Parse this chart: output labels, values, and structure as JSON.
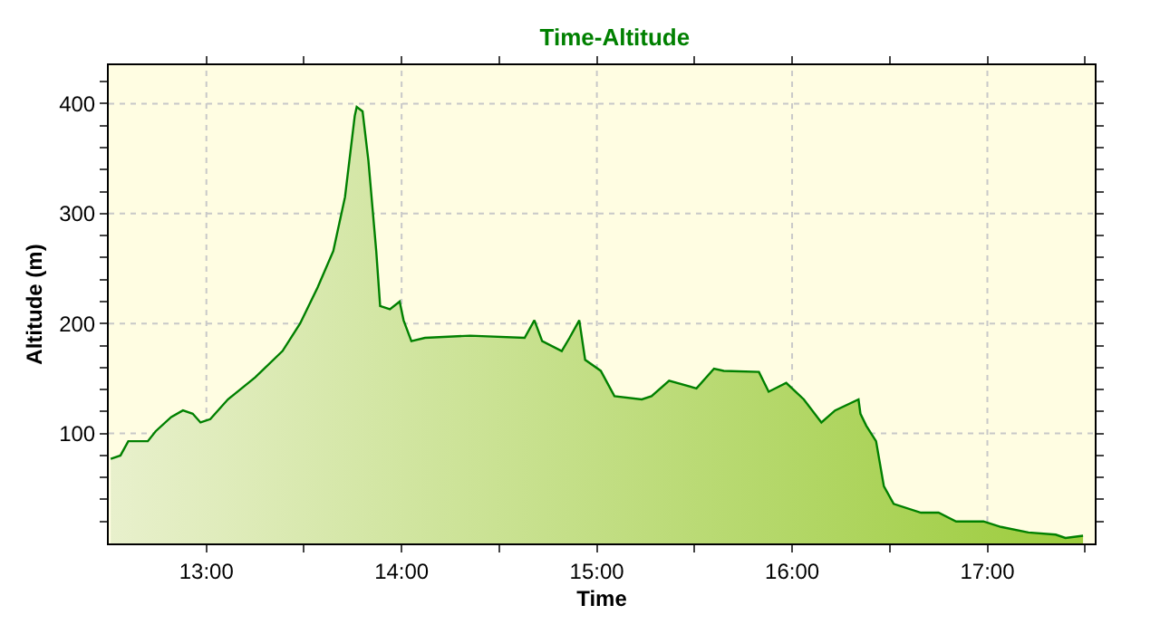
{
  "chart_data": {
    "type": "area",
    "title": "Time-Altitude",
    "xlabel": "Time",
    "ylabel": "Altitude (m)",
    "x": [
      12.51,
      12.56,
      12.6,
      12.7,
      12.74,
      12.82,
      12.88,
      12.93,
      12.97,
      13.02,
      13.11,
      13.25,
      13.39,
      13.48,
      13.57,
      13.65,
      13.71,
      13.76,
      13.77,
      13.8,
      13.83,
      13.87,
      13.89,
      13.94,
      13.99,
      14.01,
      14.05,
      14.12,
      14.35,
      14.63,
      14.68,
      14.72,
      14.82,
      14.86,
      14.91,
      14.94,
      15.02,
      15.09,
      15.23,
      15.28,
      15.37,
      15.51,
      15.6,
      15.65,
      15.83,
      15.88,
      15.97,
      16.06,
      16.15,
      16.22,
      16.34,
      16.35,
      16.38,
      16.43,
      16.47,
      16.52,
      16.66,
      16.75,
      16.84,
      16.98,
      17.07,
      17.21,
      17.35,
      17.4,
      17.49
    ],
    "series": [
      {
        "color": "#008000",
        "values": [
          77,
          80,
          93,
          93,
          102,
          115,
          121,
          118,
          110,
          113,
          131,
          151,
          175,
          200,
          233,
          266,
          315,
          389,
          397,
          393,
          348,
          266,
          216,
          213,
          220,
          203,
          184,
          187,
          189,
          187,
          203,
          184,
          175,
          187,
          203,
          167,
          157,
          134,
          131,
          134,
          148,
          141,
          159,
          157,
          156,
          138,
          146,
          131,
          110,
          121,
          131,
          118,
          107,
          93,
          52,
          36,
          28,
          28,
          20,
          20,
          15,
          10,
          8,
          5,
          7
        ]
      }
    ],
    "xlim": [
      12.5,
      17.55
    ],
    "ylim": [
      0,
      435
    ],
    "xticks": [
      {
        "value": 13,
        "label": "13:00"
      },
      {
        "value": 13.5,
        "label": null
      },
      {
        "value": 14,
        "label": "14:00"
      },
      {
        "value": 14.5,
        "label": null
      },
      {
        "value": 15,
        "label": "15:00"
      },
      {
        "value": 15.5,
        "label": null
      },
      {
        "value": 16,
        "label": "16:00"
      },
      {
        "value": 16.5,
        "label": null
      },
      {
        "value": 17,
        "label": "17:00"
      },
      {
        "value": 17.5,
        "label": null
      }
    ],
    "yticks": [
      {
        "value": 20,
        "label": null
      },
      {
        "value": 40,
        "label": null
      },
      {
        "value": 60,
        "label": null
      },
      {
        "value": 80,
        "label": null
      },
      100,
      {
        "value": 120,
        "label": null
      },
      {
        "value": 140,
        "label": null
      },
      {
        "value": 160,
        "label": null
      },
      {
        "value": 180,
        "label": null
      },
      200,
      {
        "value": 220,
        "label": null
      },
      {
        "value": 240,
        "label": null
      },
      {
        "value": 260,
        "label": null
      },
      {
        "value": 280,
        "label": null
      },
      300,
      {
        "value": 320,
        "label": null
      },
      {
        "value": 340,
        "label": null
      },
      {
        "value": 360,
        "label": null
      },
      {
        "value": 380,
        "label": null
      },
      400,
      {
        "value": 420,
        "label": null
      }
    ],
    "grid": true,
    "legend": false,
    "marker": "none",
    "line_style": "solid"
  }
}
